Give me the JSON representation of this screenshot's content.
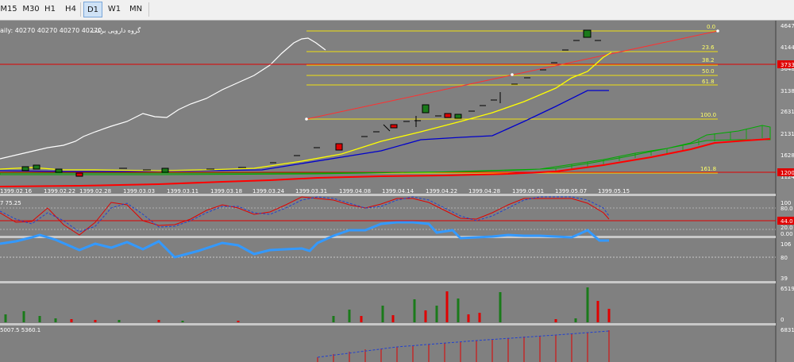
{
  "toolbar": {
    "timeframes": [
      "M15",
      "M30",
      "H1",
      "H4",
      "D1",
      "W1",
      "MN"
    ],
    "active": "D1"
  },
  "chart": {
    "info_label": "aily:  40270  40270  40270  40270",
    "symbol_name": "گروه دارویی برکت",
    "price_labels": [
      "4647",
      "4144",
      "3648",
      "3138",
      "2631",
      "2131",
      "1628",
      "1124"
    ],
    "price_tag_upper": "3733",
    "price_tag_lower": "1200",
    "fib_levels": [
      "0.0",
      "23.6",
      "38.2",
      "50.0",
      "61.8",
      "100.0",
      "161.8"
    ],
    "dates": [
      "1399.02.16",
      "1399.02.22",
      "1399.02.28",
      "1399.03.03",
      "1399.03.11",
      "1399.03.18",
      "1399.03.24",
      "1399.03.31",
      "1399.04.08",
      "1399.04.14",
      "1399.04.22",
      "1399.04.28",
      "1399.05.01",
      "1399.05.07",
      "1399.05.15"
    ],
    "colors": {
      "up": "#1a7a1a",
      "down": "#e00000",
      "ma_fast": "#ffff00",
      "ma_slow": "#0000cc",
      "trend": "#ff0000",
      "cloud": "#009900"
    }
  },
  "stoch": {
    "label": "7 75.25",
    "levels": [
      "100",
      "80.0",
      "44.0",
      "20.0",
      "0.00"
    ]
  },
  "rsi": {
    "levels": [
      "106",
      "80",
      "39"
    ]
  },
  "volume": {
    "top": "6519",
    "bottom": "0"
  },
  "obv": {
    "label": "5007.5 5360.1",
    "top": "6831"
  }
}
